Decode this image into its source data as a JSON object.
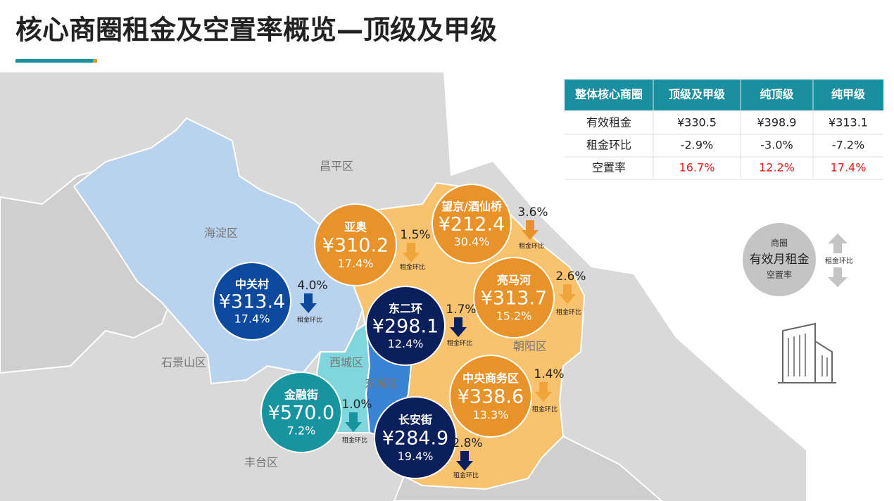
{
  "title": "核心商圈租金及空置率概览—顶级及甲级",
  "table": {
    "headers": [
      "整体核心商圈",
      "顶级及甲级",
      "纯顶级",
      "纯甲级"
    ],
    "rows": [
      [
        "有效租金",
        "¥330.5",
        "¥398.9",
        "¥313.1"
      ],
      [
        "租金环比",
        "-2.9%",
        "-3.0%",
        "-7.2%"
      ],
      [
        "空置率",
        "16.7%",
        "12.2%",
        "17.4%"
      ]
    ]
  },
  "districts": [
    "昌平区",
    "海淀区",
    "石景山区",
    "丰台区",
    "西城区",
    "东城区",
    "朝阳区"
  ],
  "areas": [
    {
      "name": "亚奥",
      "rent": "¥310.2",
      "vacancy": "17.4%",
      "change": "1.5%",
      "change_label": "租金环比",
      "color": "#e8922a",
      "arrow_color": "#f0a53a"
    },
    {
      "name": "望京/酒仙桥",
      "rent": "¥212.4",
      "vacancy": "30.4%",
      "change": "3.6%",
      "change_label": "租金环比",
      "color": "#e8922a",
      "arrow_color": "#e8922a"
    },
    {
      "name": "中关村",
      "rent": "¥313.4",
      "vacancy": "17.4%",
      "change": "4.0%",
      "change_label": "租金环比",
      "color": "#0d4a9e",
      "arrow_color": "#0d4a9e"
    },
    {
      "name": "亮马河",
      "rent": "¥313.7",
      "vacancy": "15.2%",
      "change": "2.6%",
      "change_label": "租金环比",
      "color": "#e8922a",
      "arrow_color": "#f0a53a"
    },
    {
      "name": "东二环",
      "rent": "¥298.1",
      "vacancy": "12.4%",
      "change": "1.7%",
      "change_label": "租金环比",
      "color": "#0b1f5c",
      "arrow_color": "#0b1f5c"
    },
    {
      "name": "中央商务区",
      "rent": "¥338.6",
      "vacancy": "13.3%",
      "change": "1.4%",
      "change_label": "租金环比",
      "color": "#e8922a",
      "arrow_color": "#f0a53a"
    },
    {
      "name": "金融街",
      "rent": "¥570.0",
      "vacancy": "7.2%",
      "change": "1.0%",
      "change_label": "租金环比",
      "color": "#1893a0",
      "arrow_color": "#1893a0"
    },
    {
      "name": "长安街",
      "rent": "¥284.9",
      "vacancy": "19.4%",
      "change": "2.8%",
      "change_label": "租金环比",
      "color": "#0b1f5c",
      "arrow_color": "#0b1f5c"
    }
  ],
  "legend": {
    "area": "商圈",
    "rent": "有效月租金",
    "vacancy": "空置率",
    "change": "租金环比"
  }
}
